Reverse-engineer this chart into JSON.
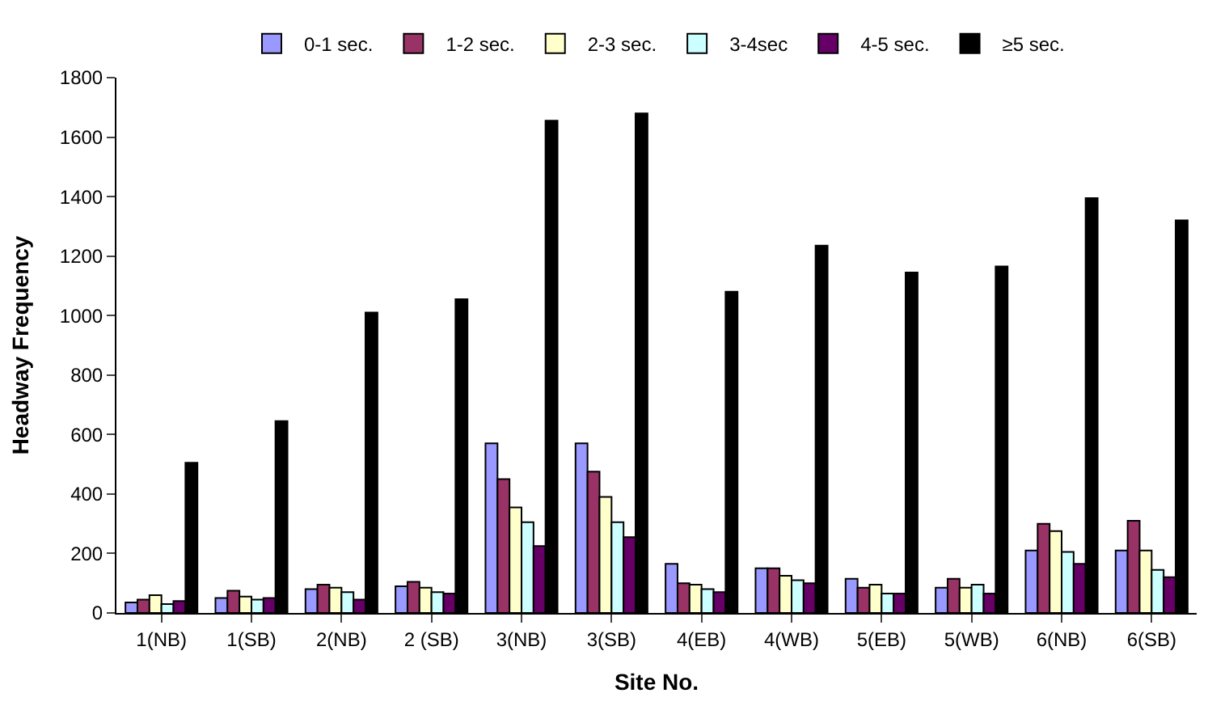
{
  "chart_data": {
    "type": "bar",
    "xlabel": "Site No.",
    "ylabel": "Headway Frequency",
    "categories": [
      "1(NB)",
      "1(SB)",
      "2(NB)",
      "2 (SB)",
      "3(NB)",
      "3(SB)",
      "4(EB)",
      "4(WB)",
      "5(EB)",
      "5(WB)",
      "6(NB)",
      "6(SB)"
    ],
    "series": [
      {
        "name": "0-1 sec.",
        "color": "#9999ff",
        "values": [
          35,
          50,
          80,
          90,
          570,
          570,
          165,
          150,
          115,
          85,
          210,
          210
        ]
      },
      {
        "name": "1-2 sec.",
        "color": "#993366",
        "values": [
          45,
          75,
          95,
          105,
          450,
          475,
          100,
          150,
          85,
          115,
          300,
          310
        ]
      },
      {
        "name": "2-3 sec.",
        "color": "#ffffcc",
        "values": [
          60,
          55,
          85,
          85,
          355,
          390,
          95,
          125,
          95,
          85,
          275,
          210
        ]
      },
      {
        "name": "3-4sec",
        "color": "#ccffff",
        "values": [
          30,
          45,
          70,
          70,
          305,
          305,
          80,
          110,
          65,
          95,
          205,
          145
        ]
      },
      {
        "name": "4-5 sec.",
        "color": "#660066",
        "values": [
          40,
          50,
          45,
          65,
          225,
          255,
          70,
          100,
          65,
          65,
          165,
          120
        ]
      },
      {
        "name": "≥5 sec.",
        "color": "#000000",
        "values": [
          505,
          645,
          1010,
          1055,
          1655,
          1680,
          1080,
          1235,
          1145,
          1165,
          1395,
          1320
        ]
      }
    ],
    "ylim": [
      0,
      1800
    ],
    "yticks": [
      0,
      200,
      400,
      600,
      800,
      1000,
      1200,
      1400,
      1600,
      1800
    ],
    "legend": "top"
  }
}
